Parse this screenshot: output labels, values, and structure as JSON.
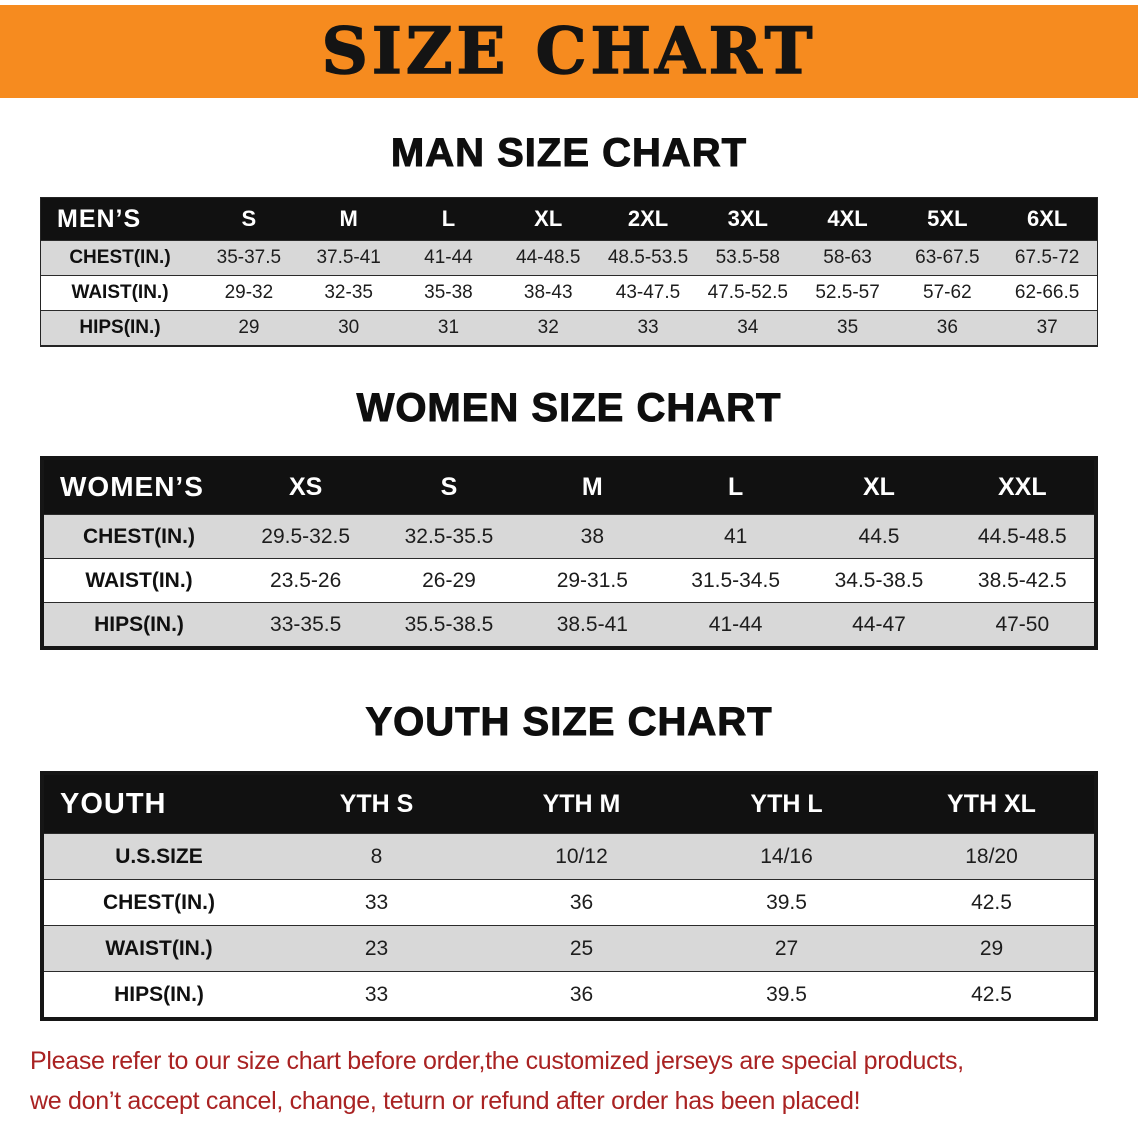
{
  "banner": {
    "title": "SIZE CHART"
  },
  "colors": {
    "banner_bg": "#f68b1f",
    "header_bg": "#111111",
    "row_alt": "#d8d8d8",
    "footer_text": "#a92222"
  },
  "sections": [
    {
      "id": "men",
      "heading": "MAN SIZE CHART",
      "table": {
        "corner_label": "MEN’S",
        "columns": [
          "S",
          "M",
          "L",
          "XL",
          "2XL",
          "3XL",
          "4XL",
          "5XL",
          "6XL"
        ],
        "rows": [
          {
            "label": "CHEST(IN.)",
            "values": [
              "35-37.5",
              "37.5-41",
              "41-44",
              "44-48.5",
              "48.5-53.5",
              "53.5-58",
              "58-63",
              "63-67.5",
              "67.5-72"
            ]
          },
          {
            "label": "WAIST(IN.)",
            "values": [
              "29-32",
              "32-35",
              "35-38",
              "38-43",
              "43-47.5",
              "47.5-52.5",
              "52.5-57",
              "57-62",
              "62-66.5"
            ]
          },
          {
            "label": "HIPS(IN.)",
            "values": [
              "29",
              "30",
              "31",
              "32",
              "33",
              "34",
              "35",
              "36",
              "37"
            ]
          }
        ]
      }
    },
    {
      "id": "women",
      "heading": "WOMEN SIZE CHART",
      "table": {
        "corner_label": "WOMEN’S",
        "columns": [
          "XS",
          "S",
          "M",
          "L",
          "XL",
          "XXL"
        ],
        "rows": [
          {
            "label": "CHEST(IN.)",
            "values": [
              "29.5-32.5",
              "32.5-35.5",
              "38",
              "41",
              "44.5",
              "44.5-48.5"
            ]
          },
          {
            "label": "WAIST(IN.)",
            "values": [
              "23.5-26",
              "26-29",
              "29-31.5",
              "31.5-34.5",
              "34.5-38.5",
              "38.5-42.5"
            ]
          },
          {
            "label": "HIPS(IN.)",
            "values": [
              "33-35.5",
              "35.5-38.5",
              "38.5-41",
              "41-44",
              "44-47",
              "47-50"
            ]
          }
        ]
      }
    },
    {
      "id": "youth",
      "heading": "YOUTH SIZE CHART",
      "table": {
        "corner_label": "YOUTH",
        "columns": [
          "YTH S",
          "YTH M",
          "YTH L",
          "YTH XL"
        ],
        "rows": [
          {
            "label": "U.S.SIZE",
            "values": [
              "8",
              "10/12",
              "14/16",
              "18/20"
            ]
          },
          {
            "label": "CHEST(IN.)",
            "values": [
              "33",
              "36",
              "39.5",
              "42.5"
            ]
          },
          {
            "label": "WAIST(IN.)",
            "values": [
              "23",
              "25",
              "27",
              "29"
            ]
          },
          {
            "label": "HIPS(IN.)",
            "values": [
              "33",
              "36",
              "39.5",
              "42.5"
            ]
          }
        ]
      }
    }
  ],
  "footer": {
    "line1": "Please refer to our size chart before order,the customized jerseys are special products,",
    "line2": "we don’t accept cancel, change, teturn or refund after order has been placed!"
  }
}
